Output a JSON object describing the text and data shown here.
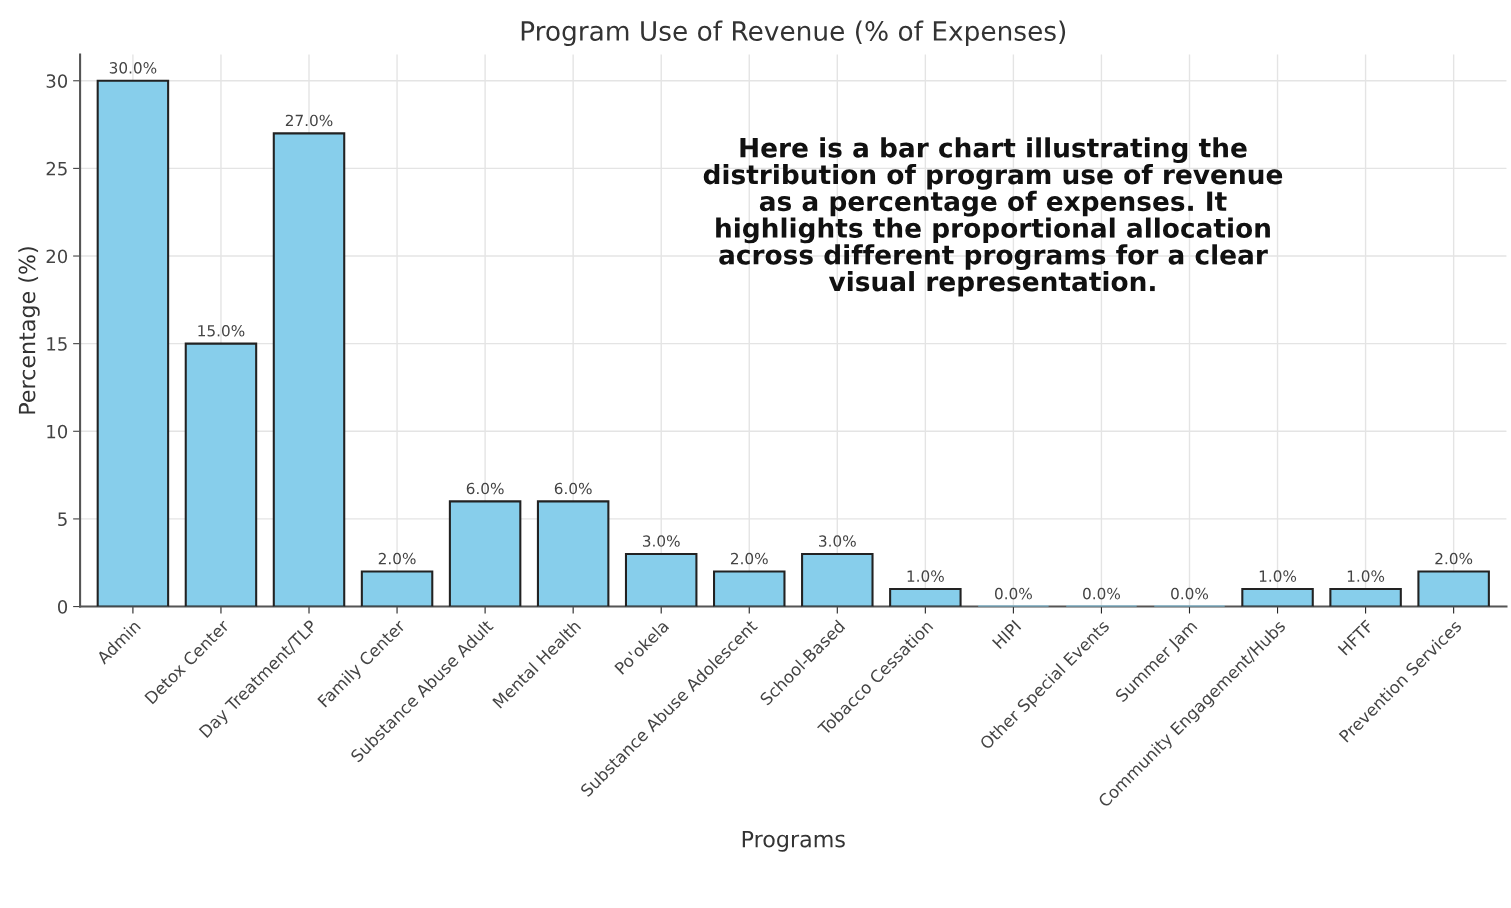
{
  "chart_data": {
    "type": "bar",
    "title": "Program Use of Revenue (% of Expenses)",
    "xlabel": "Programs",
    "ylabel": "Percentage (%)",
    "categories": [
      "Admin",
      "Detox Center",
      "Day Treatment/TLP",
      "Family Center",
      "Substance Abuse Adult",
      "Mental Health",
      "Po'okela",
      "Substance Abuse Adolescent",
      "School-Based",
      "Tobacco Cessation",
      "HIPI",
      "Other Special Events",
      "Summer Jam",
      "Community Engagement/Hubs",
      "HFTF",
      "Prevention Services"
    ],
    "values": [
      30,
      15,
      27,
      2,
      6,
      6,
      3,
      2,
      3,
      1,
      0,
      0,
      0,
      1,
      1,
      2
    ],
    "value_labels": [
      "30.0%",
      "15.0%",
      "27.0%",
      "2.0%",
      "6.0%",
      "6.0%",
      "3.0%",
      "2.0%",
      "3.0%",
      "1.0%",
      "0.0%",
      "0.0%",
      "0.0%",
      "1.0%",
      "1.0%",
      "2.0%"
    ],
    "color": "#87ceeb",
    "ylim": [
      0,
      31.5
    ],
    "yticks": [
      0,
      5,
      10,
      15,
      20,
      25,
      30
    ],
    "grid": true,
    "annotations": [
      "Here is a bar chart illustrating the\ndistribution of program use of revenue\nas a percentage of expenses. It\nhighlights the proportional allocation\nacross different programs for a clear\nvisual representation."
    ]
  }
}
